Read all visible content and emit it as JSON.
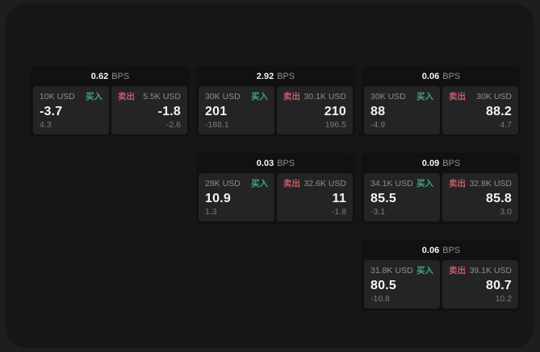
{
  "page": {
    "background": "#1e1e1f",
    "surface": "#161617"
  },
  "colors": {
    "card_base": "#111112",
    "panel": "#242427",
    "text_primary": "#f4f4f5",
    "text_secondary": "#8e8e92",
    "text_tertiary": "#7b7b7f",
    "buy_green": "#41a876",
    "sell_red": "#c65a68"
  },
  "labels": {
    "bps_unit": "BPS",
    "buy": "买入",
    "sell": "卖出"
  },
  "cards": [
    {
      "bps": "0.62",
      "buy": {
        "size": "10K USD",
        "value": "-3.7",
        "delta": "4.3"
      },
      "sell": {
        "size": "5.5K USD",
        "value": "-1.8",
        "delta": "-2.6"
      }
    },
    {
      "bps": "2.92",
      "buy": {
        "size": "30K USD",
        "value": "201",
        "delta": "-188.1"
      },
      "sell": {
        "size": "30.1K USD",
        "value": "210",
        "delta": "196.5"
      }
    },
    {
      "bps": "0.06",
      "buy": {
        "size": "30K USD",
        "value": "88",
        "delta": "-4.9"
      },
      "sell": {
        "size": "30K USD",
        "value": "88.2",
        "delta": "4.7"
      }
    },
    {
      "bps": "0.03",
      "buy": {
        "size": "28K USD",
        "value": "10.9",
        "delta": "1.3"
      },
      "sell": {
        "size": "32.6K USD",
        "value": "11",
        "delta": "-1.8"
      }
    },
    {
      "bps": "0.09",
      "buy": {
        "size": "34.1K USD",
        "value": "85.5",
        "delta": "-3.1"
      },
      "sell": {
        "size": "32.8K USD",
        "value": "85.8",
        "delta": "3.0"
      }
    },
    {
      "bps": "0.06",
      "buy": {
        "size": "31.8K USD",
        "value": "80.5",
        "delta": "-10.8"
      },
      "sell": {
        "size": "39.1K USD",
        "value": "80.7",
        "delta": "10.2"
      }
    }
  ]
}
